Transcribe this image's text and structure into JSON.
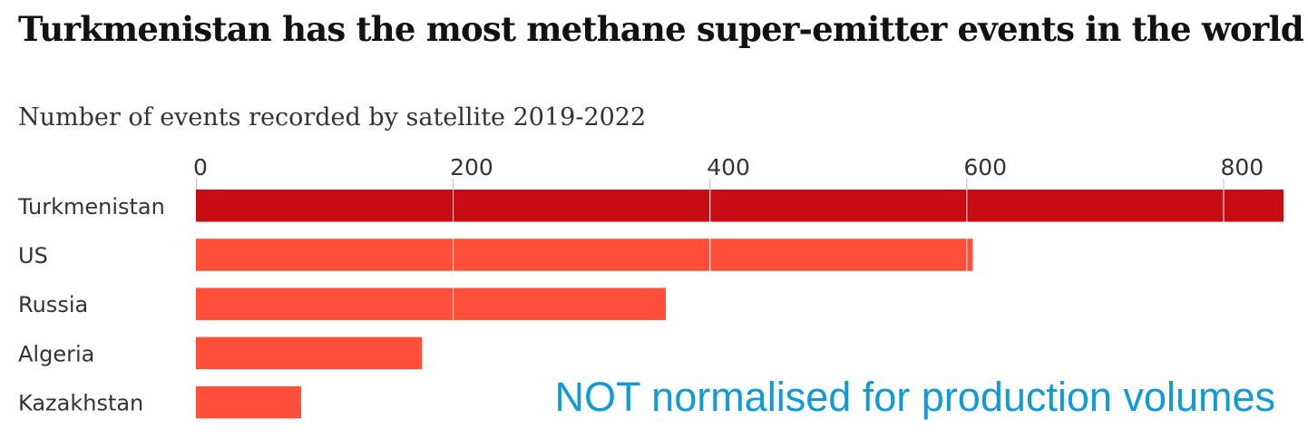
{
  "title": "Turkmenistan has the most methane super-emitter events in the world",
  "subtitle": "Number of events recorded by satellite 2019-2022",
  "annotation": "NOT normalised for production volumes",
  "colors": {
    "highlight": "#c70c13",
    "bar": "#ff4f3a",
    "grid": "#ffffff"
  },
  "chart_data": {
    "type": "bar",
    "orientation": "horizontal",
    "title": "Turkmenistan has the most methane super-emitter events in the world",
    "subtitle": "Number of events recorded by satellite 2019-2022",
    "categories": [
      "Turkmenistan",
      "US",
      "Russia",
      "Algeria",
      "Kazakhstan"
    ],
    "values": [
      847,
      605,
      366,
      176,
      82
    ],
    "highlight_index": 0,
    "x_ticks": [
      0,
      200,
      400,
      600,
      800
    ],
    "xlim": [
      0,
      847
    ],
    "axis_position": "top",
    "grid": true
  }
}
